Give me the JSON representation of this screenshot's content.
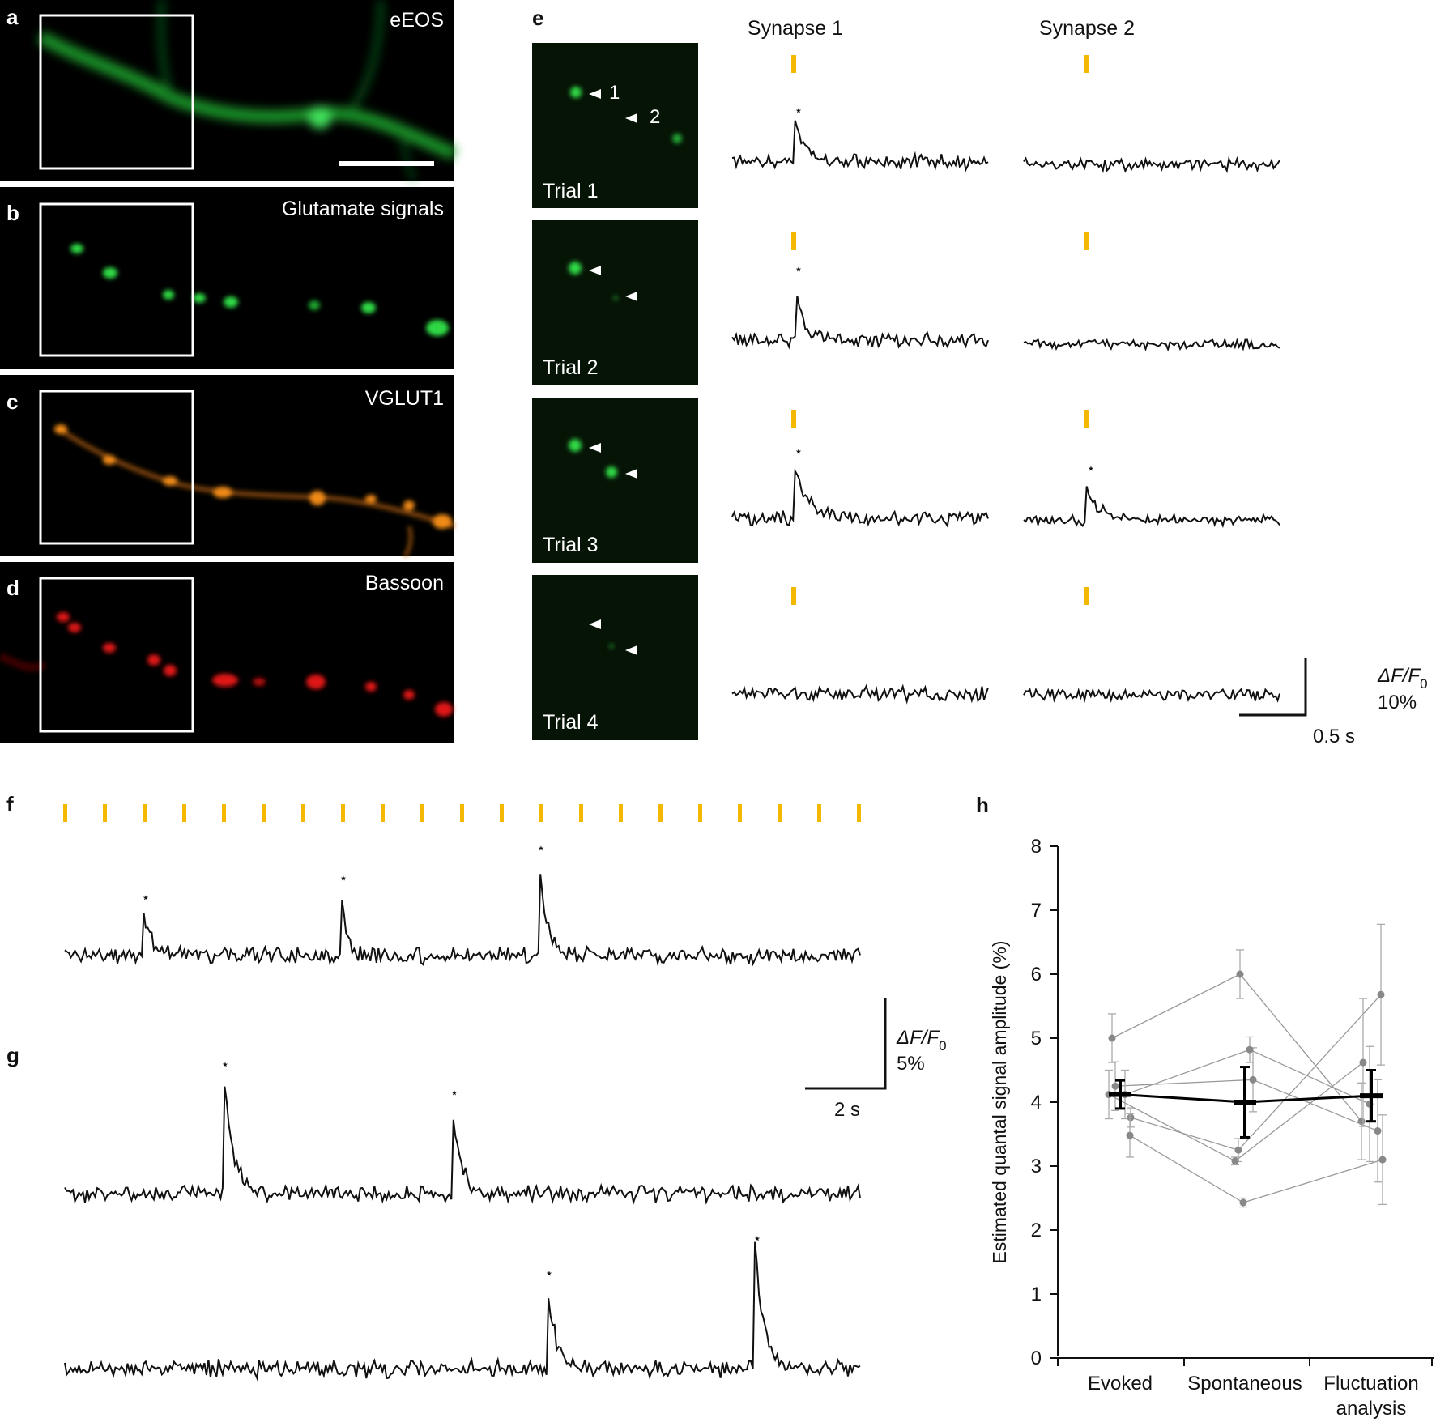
{
  "colors": {
    "stim_marker": "#f5b800",
    "trace": "#111111",
    "eeos_green": "#22c43a",
    "vglut1_orange": "#f08a18",
    "bassoon_red": "#e01818",
    "individual_points": "#888888",
    "mean_line": "#000000"
  },
  "panels": {
    "a": {
      "letter": "a",
      "label": "eEOS"
    },
    "b": {
      "letter": "b",
      "label": "Glutamate signals"
    },
    "c": {
      "letter": "c",
      "label": "VGLUT1"
    },
    "d": {
      "letter": "d",
      "label": "Bassoon"
    },
    "e": {
      "letter": "e",
      "synapse1": "Synapse 1",
      "synapse2": "Synapse 2",
      "arrow1": "1",
      "arrow2": "2",
      "trials": [
        "Trial 1",
        "Trial 2",
        "Trial 3",
        "Trial 4"
      ],
      "scale_y_main": "ΔF/F",
      "scale_y_sub": "0",
      "scale_y_value": "10%",
      "scale_x": "0.5 s"
    },
    "f": {
      "letter": "f"
    },
    "g": {
      "letter": "g",
      "scale_y_main": "ΔF/F",
      "scale_y_sub": "0",
      "scale_y_value": "5%",
      "scale_x": "2 s"
    },
    "h": {
      "letter": "h"
    }
  },
  "star": "⋆",
  "chart_data": {
    "type": "scatter",
    "title": "",
    "xlabel": "",
    "ylabel": "Estimated quantal signal amplitude (%)",
    "ylim": [
      0,
      8
    ],
    "yticks": [
      "0",
      "1",
      "2",
      "3",
      "4",
      "5",
      "6",
      "7",
      "8"
    ],
    "categories": [
      "Evoked",
      "Spontaneous",
      "Fluctuation analysis"
    ],
    "category_lines": [
      [
        "Evoked"
      ],
      [
        "Spontaneous"
      ],
      [
        "Fluctuation",
        "analysis"
      ]
    ],
    "mean": {
      "values": [
        4.12,
        4.0,
        4.1
      ],
      "errors": [
        0.22,
        0.55,
        0.4
      ]
    },
    "individual": [
      {
        "values": [
          5.0,
          6.0,
          3.7
        ],
        "errors": [
          0.38,
          0.38,
          0.6
        ]
      },
      {
        "values": [
          4.25,
          4.35,
          3.55
        ],
        "errors": [
          0.38,
          0.5,
          0.8
        ]
      },
      {
        "values": [
          4.12,
          4.82,
          3.97
        ],
        "errors": [
          0.38,
          0.2,
          0.9
        ]
      },
      {
        "values": [
          3.76,
          3.25,
          5.68
        ],
        "errors": [
          0.15,
          0.18,
          1.1
        ]
      },
      {
        "values": [
          4.12,
          3.08,
          4.62
        ],
        "errors": [
          0.38,
          0.06,
          1.0
        ]
      },
      {
        "values": [
          3.48,
          2.43,
          3.1
        ],
        "errors": [
          0.34,
          0.07,
          0.7
        ]
      }
    ],
    "grid": false,
    "legend": "none"
  }
}
